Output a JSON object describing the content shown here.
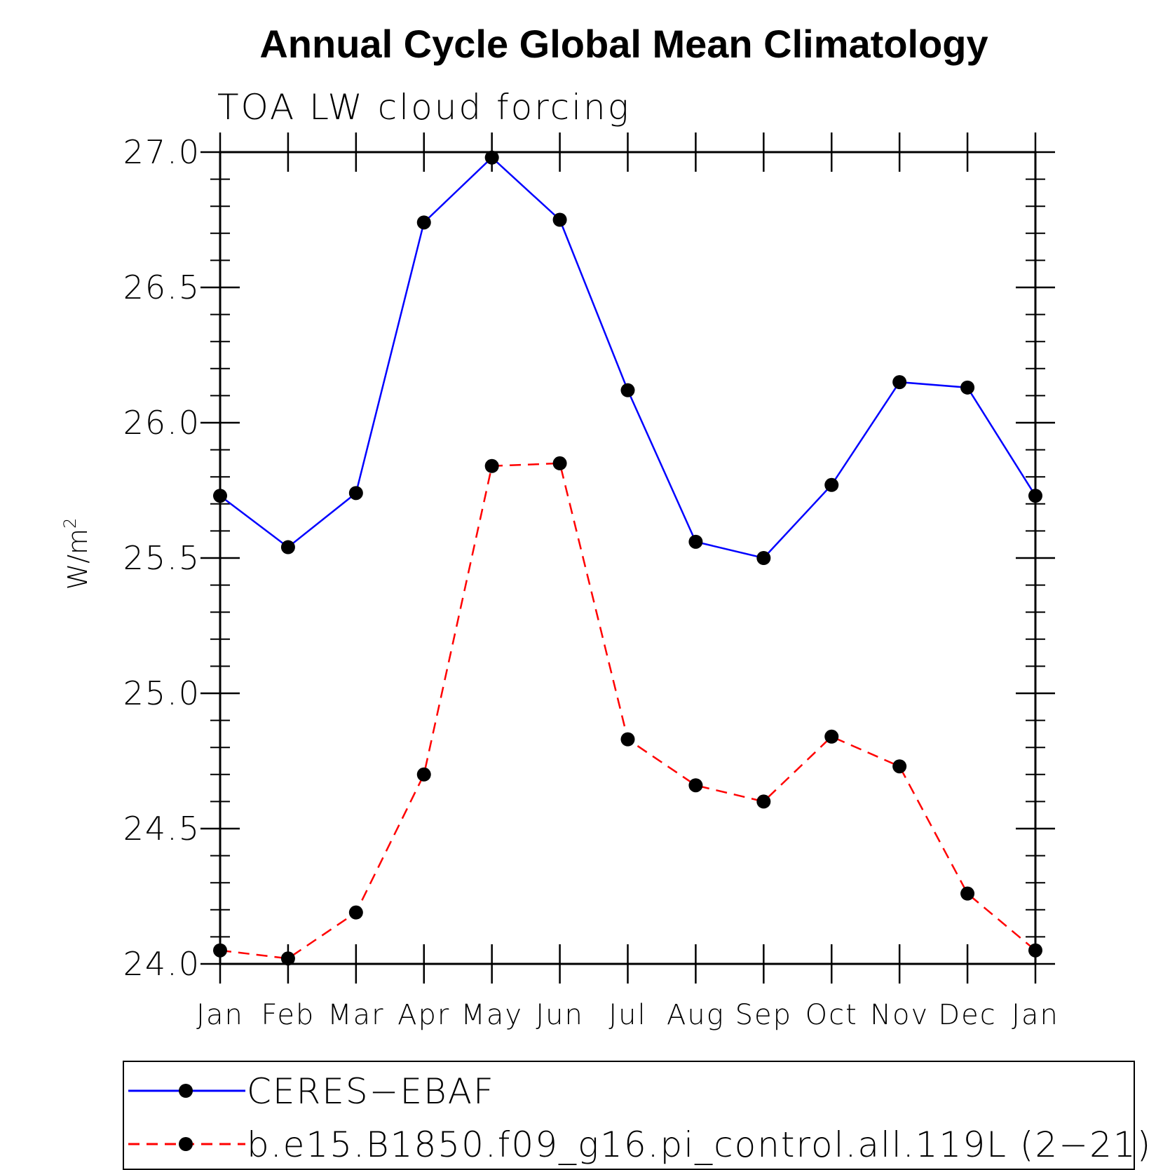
{
  "chart_data": {
    "type": "line",
    "title": "Annual Cycle Global Mean Climatology",
    "subtitle": "TOA LW cloud forcing",
    "ylabel": "W/m",
    "ylabel_sup": "2",
    "xlabel": "",
    "categories": [
      "Jan",
      "Feb",
      "Mar",
      "Apr",
      "May",
      "Jun",
      "Jul",
      "Aug",
      "Sep",
      "Oct",
      "Nov",
      "Dec",
      "Jan"
    ],
    "ylim": [
      24.0,
      27.0
    ],
    "yticks": [
      "24.0",
      "24.5",
      "25.0",
      "25.5",
      "26.0",
      "26.5",
      "27.0"
    ],
    "series": [
      {
        "name": "CERES−EBAF",
        "color": "#0000ff",
        "dash": "solid",
        "values": [
          25.73,
          25.54,
          25.74,
          26.74,
          26.98,
          26.75,
          26.12,
          25.56,
          25.5,
          25.77,
          26.15,
          26.13,
          25.73
        ]
      },
      {
        "name": "b.e15.B1850.f09_g16.pi_control.all.119L (2−21)",
        "color": "#ff0000",
        "dash": "dashed",
        "values": [
          24.05,
          24.02,
          24.19,
          24.7,
          25.84,
          25.85,
          24.83,
          24.66,
          24.6,
          24.84,
          24.73,
          24.26,
          24.05
        ]
      }
    ],
    "legend_position": "bottom"
  }
}
